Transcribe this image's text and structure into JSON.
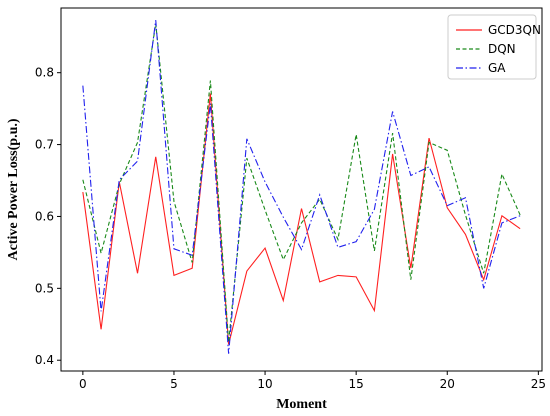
{
  "chart_data": {
    "type": "line",
    "xlabel": "Moment",
    "ylabel": "Active Power Loss(p.u.)",
    "xlim": [
      -1.2,
      25.2
    ],
    "ylim": [
      0.385,
      0.89
    ],
    "xticks": [
      0,
      5,
      10,
      15,
      20,
      25
    ],
    "yticks": [
      0.4,
      0.5,
      0.6,
      0.7,
      0.8
    ],
    "ytick_labels": [
      "0.4",
      "0.5",
      "0.6",
      "0.7",
      "0.8"
    ],
    "legend_position": "top-right",
    "grid": false,
    "x": [
      0,
      1,
      2,
      3,
      4,
      5,
      6,
      7,
      8,
      9,
      10,
      11,
      12,
      13,
      14,
      15,
      16,
      17,
      18,
      19,
      20,
      21,
      22,
      23,
      24
    ],
    "series": [
      {
        "name": "GCD3QN",
        "color": "#ff2020",
        "dash": "solid",
        "values": [
          0.634,
          0.443,
          0.648,
          0.521,
          0.683,
          0.518,
          0.528,
          0.771,
          0.422,
          0.524,
          0.556,
          0.483,
          0.611,
          0.509,
          0.518,
          0.516,
          0.469,
          0.687,
          0.528,
          0.709,
          0.612,
          0.575,
          0.512,
          0.601,
          0.583
        ]
      },
      {
        "name": "DQN",
        "color": "#1a8a1a",
        "dash": "dashed",
        "values": [
          0.651,
          0.549,
          0.645,
          0.703,
          0.868,
          0.621,
          0.536,
          0.789,
          0.425,
          0.681,
          0.609,
          0.54,
          0.591,
          0.624,
          0.568,
          0.714,
          0.552,
          0.716,
          0.512,
          0.703,
          0.692,
          0.602,
          0.521,
          0.659,
          0.602
        ]
      },
      {
        "name": "GA",
        "color": "#2222ee",
        "dash": "dashdot",
        "values": [
          0.782,
          0.468,
          0.651,
          0.677,
          0.873,
          0.555,
          0.546,
          0.757,
          0.409,
          0.708,
          0.648,
          0.599,
          0.554,
          0.63,
          0.557,
          0.565,
          0.61,
          0.746,
          0.657,
          0.669,
          0.615,
          0.626,
          0.5,
          0.591,
          0.601
        ]
      }
    ]
  }
}
